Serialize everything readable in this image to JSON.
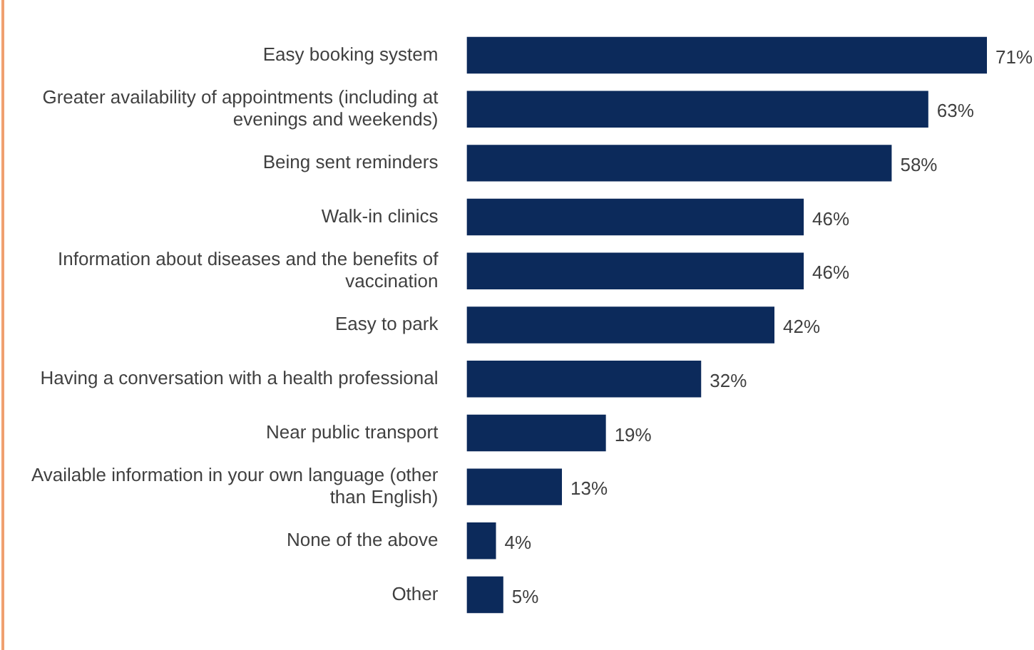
{
  "chart_data": {
    "type": "bar",
    "orientation": "horizontal",
    "categories": [
      "Easy booking system",
      "Greater availability of appointments (including at evenings and weekends)",
      "Being sent reminders",
      "Walk-in clinics",
      "Information about diseases and the benefits of vaccination",
      "Easy to park",
      "Having a conversation with a health professional",
      "Near public transport",
      "Available information in your own language (other than English)",
      "None of the above",
      "Other"
    ],
    "values": [
      71,
      63,
      58,
      46,
      46,
      42,
      32,
      19,
      13,
      4,
      5
    ],
    "value_labels": [
      "71%",
      "63%",
      "58%",
      "46%",
      "46%",
      "42%",
      "32%",
      "19%",
      "13%",
      "4%",
      "5%"
    ],
    "color": "#0c2a5b",
    "xlim": [
      0,
      71
    ],
    "legend": false
  }
}
